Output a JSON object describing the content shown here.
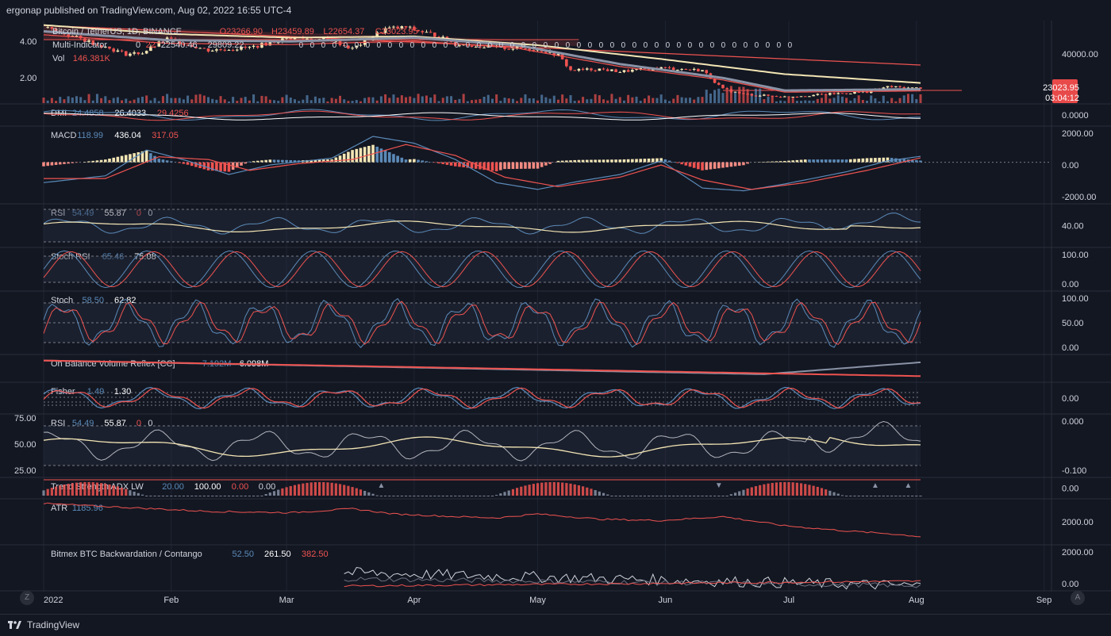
{
  "header": {
    "published": "ergonap published on TradingView.com, Aug 02, 2022 16:55 UTC-4"
  },
  "footer": {
    "brand": "TradingView",
    "left_button": "Z",
    "right_button": "A"
  },
  "colors": {
    "background": "#131722",
    "text": "#d1d4dc",
    "muted": "#787b86",
    "red": "#ef5350",
    "orange": "#e8743b",
    "blue": "#5b8ab8",
    "cream": "#f3e6b5",
    "grid": "#1f2433",
    "price_tag": "#e84a4a"
  },
  "price_tag": {
    "price": "23023.95",
    "countdown": "03:04:12"
  },
  "chart_data": [
    {
      "name": "main",
      "type": "candlestick",
      "legend": [
        {
          "text": "Bitcoin / TetherUS, 1D, BINANCE",
          "color": "#d1d4dc"
        },
        {
          "text": "O23266.90",
          "color": "#ef5350"
        },
        {
          "text": "H23459.89",
          "color": "#ef5350"
        },
        {
          "text": "L22654.37",
          "color": "#ef5350"
        },
        {
          "text": "C23023.95",
          "color": "#ef5350"
        }
      ],
      "legend2": [
        {
          "text": "Multi-Indicator",
          "color": "#d1d4dc"
        },
        {
          "text": "0",
          "color": "#d1d4dc"
        },
        {
          "text": "22",
          "color": "#ef5350"
        },
        {
          "text": "22540.46",
          "color": "#d1d4dc"
        },
        {
          "text": "29809.22",
          "color": "#d1d4dc"
        }
      ],
      "legend3": [
        {
          "text": "Vol",
          "color": "#d1d4dc"
        },
        {
          "text": "146.381K",
          "color": "#ef5350"
        }
      ],
      "left_ticks": [
        "4.00",
        "2.00"
      ],
      "right_ticks": [
        "40000.00"
      ],
      "ylim": [
        17000,
        48500
      ],
      "x_months": [
        "2022",
        "Feb",
        "Mar",
        "Apr",
        "May",
        "Jun",
        "Jul",
        "Aug",
        "Sep"
      ],
      "close_path": [
        [
          0,
          47000
        ],
        [
          10,
          42000
        ],
        [
          20,
          36500
        ],
        [
          24,
          37000
        ],
        [
          30,
          42500
        ],
        [
          40,
          38000
        ],
        [
          50,
          39000
        ],
        [
          60,
          43000
        ],
        [
          70,
          42000
        ],
        [
          75,
          38500
        ],
        [
          83,
          46500
        ],
        [
          88,
          47000
        ],
        [
          95,
          44000
        ],
        [
          100,
          40500
        ],
        [
          110,
          39000
        ],
        [
          120,
          38500
        ],
        [
          125,
          36000
        ],
        [
          128,
          30000
        ],
        [
          135,
          30500
        ],
        [
          140,
          29500
        ],
        [
          150,
          31000
        ],
        [
          160,
          30000
        ],
        [
          165,
          22500
        ],
        [
          170,
          20500
        ],
        [
          180,
          19500
        ],
        [
          190,
          20500
        ],
        [
          200,
          21500
        ],
        [
          205,
          23500
        ],
        [
          210,
          23000
        ],
        [
          213,
          23024
        ]
      ],
      "ma_slow": [
        [
          0,
          48000
        ],
        [
          30,
          44500
        ],
        [
          60,
          43000
        ],
        [
          90,
          43500
        ],
        [
          120,
          40000
        ],
        [
          150,
          34500
        ],
        [
          180,
          28500
        ],
        [
          213,
          25000
        ]
      ],
      "ma_fast": [
        [
          0,
          45500
        ],
        [
          30,
          42000
        ],
        [
          60,
          41500
        ],
        [
          90,
          43000
        ],
        [
          115,
          40000
        ],
        [
          140,
          32500
        ],
        [
          165,
          27000
        ],
        [
          180,
          22000
        ],
        [
          213,
          22500
        ]
      ]
    },
    {
      "name": "dmi",
      "type": "line",
      "label": "DMI",
      "values_text": [
        "24.4858",
        "26.4033",
        "29.4256"
      ],
      "right_ticks": [
        "0.0000"
      ],
      "ylim": [
        0,
        60
      ]
    },
    {
      "name": "macd",
      "type": "histogram+line",
      "label": "MACD",
      "values_text": [
        "118.99",
        "436.04",
        "317.05"
      ],
      "right_ticks": [
        "2000.00",
        "0.00",
        "-2000.00"
      ],
      "ylim": [
        -3000,
        2600
      ],
      "macd_line": [
        [
          0,
          -1500
        ],
        [
          15,
          -1000
        ],
        [
          25,
          900
        ],
        [
          35,
          100
        ],
        [
          45,
          -900
        ],
        [
          55,
          -200
        ],
        [
          70,
          300
        ],
        [
          80,
          1900
        ],
        [
          90,
          1400
        ],
        [
          100,
          200
        ],
        [
          110,
          -1500
        ],
        [
          120,
          -2000
        ],
        [
          130,
          -1400
        ],
        [
          140,
          -900
        ],
        [
          150,
          100
        ],
        [
          160,
          -1900
        ],
        [
          170,
          -2100
        ],
        [
          180,
          -1600
        ],
        [
          195,
          -700
        ],
        [
          205,
          100
        ],
        [
          213,
          436
        ]
      ],
      "signal_line": [
        [
          0,
          -1200
        ],
        [
          15,
          -1200
        ],
        [
          28,
          400
        ],
        [
          40,
          200
        ],
        [
          50,
          -600
        ],
        [
          62,
          -100
        ],
        [
          75,
          200
        ],
        [
          88,
          1300
        ],
        [
          100,
          500
        ],
        [
          112,
          -1100
        ],
        [
          125,
          -1800
        ],
        [
          140,
          -1100
        ],
        [
          150,
          -200
        ],
        [
          160,
          -1300
        ],
        [
          172,
          -2000
        ],
        [
          185,
          -1500
        ],
        [
          200,
          -600
        ],
        [
          213,
          317
        ]
      ]
    },
    {
      "name": "rsi1",
      "type": "line",
      "label": "RSI",
      "values_text": [
        "54.49",
        "55.87",
        "0",
        "0"
      ],
      "right_ticks": [
        "40.00"
      ],
      "ylim": [
        10,
        90
      ]
    },
    {
      "name": "stochrsi",
      "type": "line",
      "label": "Stoch RSI",
      "values_text": [
        "65.46",
        "75.08"
      ],
      "right_ticks": [
        "100.00",
        "0.00"
      ],
      "ylim": [
        -5,
        105
      ]
    },
    {
      "name": "stoch",
      "type": "line",
      "label": "Stoch",
      "values_text": [
        "58.50",
        "62.82"
      ],
      "right_ticks": [
        "100.00",
        "50.00",
        "0.00"
      ],
      "ylim": [
        -5,
        110
      ]
    },
    {
      "name": "obv",
      "type": "line",
      "label": "On Balance Volume Reflex [CC]",
      "values_text": [
        "7.192M",
        "6.098M"
      ],
      "right_ticks": [],
      "ylim": [
        0,
        10
      ]
    },
    {
      "name": "fisher",
      "type": "line",
      "label": "Fisher",
      "values_text": [
        "1.49",
        "1.30"
      ],
      "right_ticks": [
        "0.00"
      ],
      "ylim": [
        -3,
        3
      ]
    },
    {
      "name": "rsi2",
      "type": "line",
      "label": "RSI",
      "values_text": [
        "54.49",
        "55.87",
        "0",
        "0"
      ],
      "left_ticks": [
        "75.00",
        "50.00",
        "25.00"
      ],
      "right_ticks": [
        "0.000",
        "-0.100"
      ],
      "ylim": [
        10,
        85
      ]
    },
    {
      "name": "trend",
      "type": "histogram",
      "label": "Trend Strength ADX LW",
      "values_text": [
        "20.00",
        "100.00",
        "0.00",
        "0.00"
      ],
      "right_ticks": [
        "0.00"
      ],
      "ylim": [
        0,
        100
      ]
    },
    {
      "name": "atr",
      "type": "line",
      "label": "ATR",
      "values_text": [
        "1185.96"
      ],
      "right_ticks": [
        "2000.00"
      ],
      "ylim": [
        900,
        2600
      ],
      "series": [
        [
          0,
          2450
        ],
        [
          20,
          2300
        ],
        [
          40,
          2150
        ],
        [
          60,
          2100
        ],
        [
          75,
          2250
        ],
        [
          85,
          2050
        ],
        [
          100,
          1950
        ],
        [
          110,
          1900
        ],
        [
          120,
          2050
        ],
        [
          135,
          1850
        ],
        [
          150,
          1800
        ],
        [
          165,
          1950
        ],
        [
          180,
          1600
        ],
        [
          195,
          1400
        ],
        [
          205,
          1300
        ],
        [
          213,
          1186
        ]
      ]
    },
    {
      "name": "bitmex",
      "type": "line",
      "label": "Bitmex BTC Backwardation / Contango",
      "values_text": [
        "52.50",
        "261.50",
        "382.50"
      ],
      "right_ticks": [
        "2000.00",
        "0.00"
      ],
      "ylim": [
        -200,
        2600
      ],
      "start_x": 73
    }
  ]
}
